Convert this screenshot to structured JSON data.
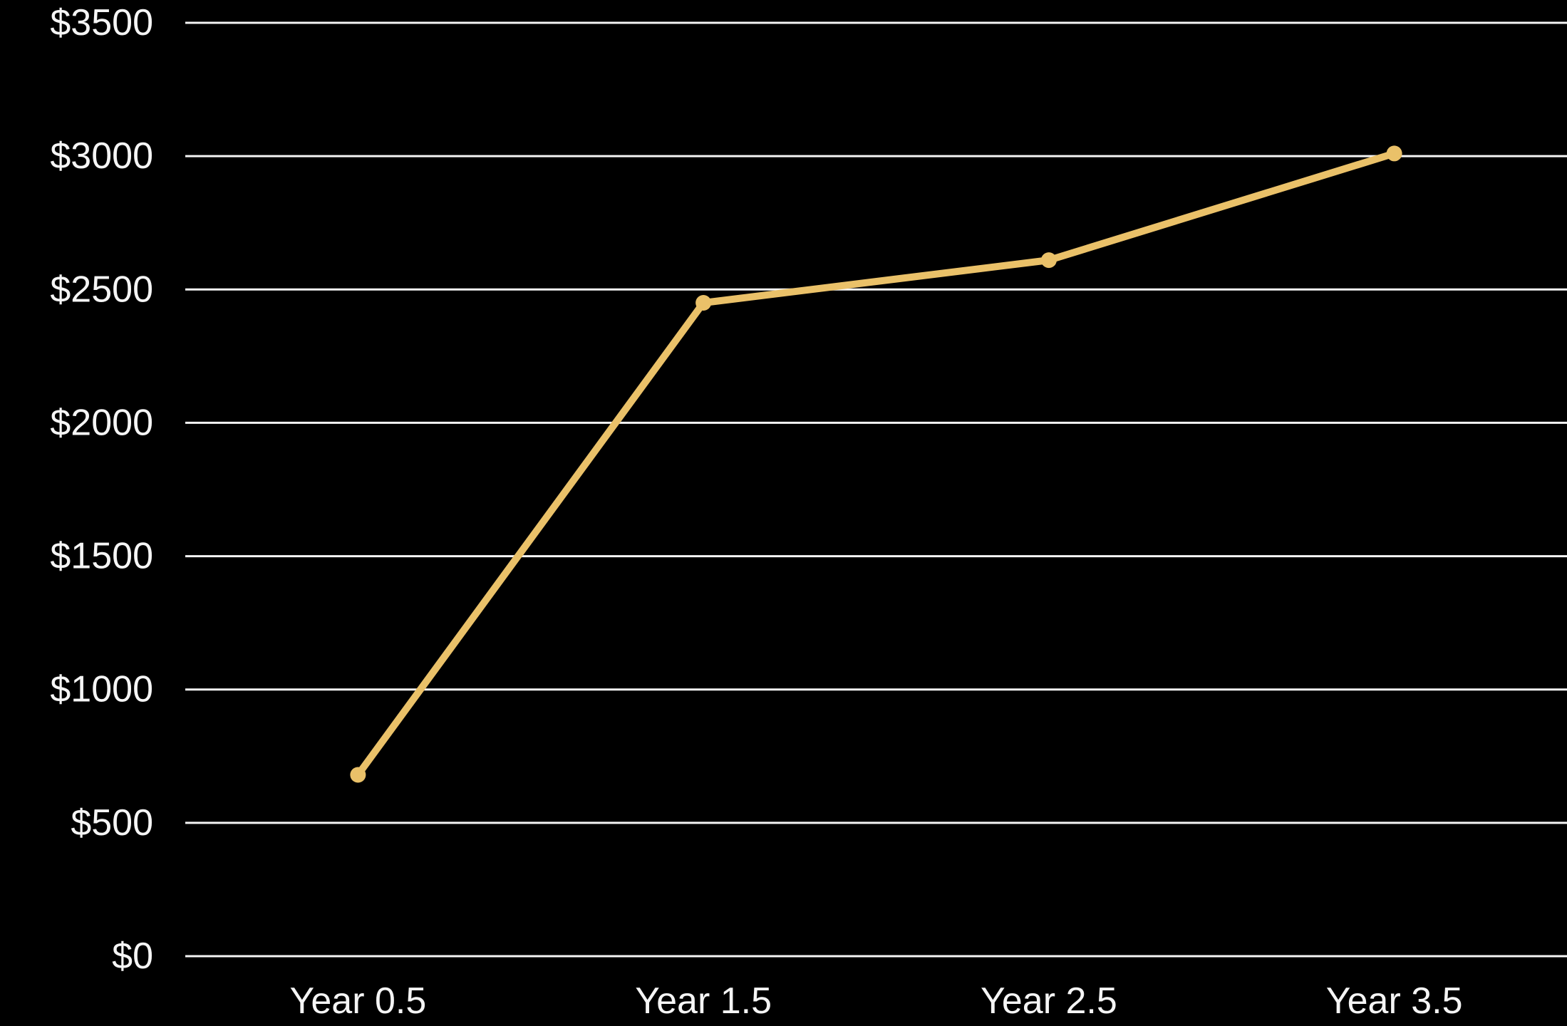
{
  "colors": {
    "background": "#000000",
    "gridline": "#f5f5f5",
    "line": "#EAC169",
    "point": "#EAC169",
    "label": "#f5f5f5"
  },
  "chart_data": {
    "type": "line",
    "title": "",
    "xlabel": "",
    "ylabel": "",
    "categories": [
      "Year 0.5",
      "Year 1.5",
      "Year 2.5",
      "Year 3.5"
    ],
    "series": [
      {
        "name": "value",
        "values": [
          680,
          2450,
          2610,
          3010
        ]
      }
    ],
    "y_ticks": [
      0,
      500,
      1000,
      1500,
      2000,
      2500,
      3000,
      3500
    ],
    "y_tick_labels": [
      "$0",
      "$500",
      "$1000",
      "$1500",
      "$2000",
      "$2500",
      "$3000",
      "$3500"
    ],
    "ylim": [
      0,
      3500
    ],
    "grid": true,
    "legend": false,
    "legend_position": "none",
    "marker": "circle"
  }
}
